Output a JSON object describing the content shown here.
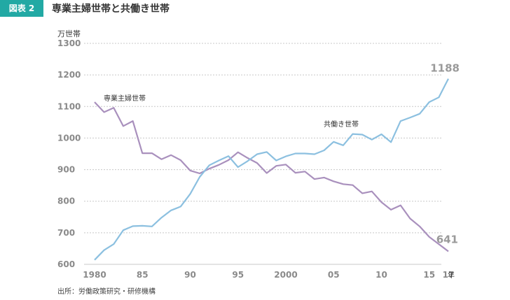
{
  "figure_label": "図表 2",
  "chart_data": {
    "type": "line",
    "title": "専業主婦世帯と共働き世帯",
    "ylabel": "万世帯",
    "xlabel": "年",
    "source": "出所：労働政策研究・研修機構",
    "ylim": [
      600,
      1300
    ],
    "yticks": [
      600,
      700,
      800,
      900,
      1000,
      1100,
      1200,
      1300
    ],
    "xlim": [
      1980,
      2017
    ],
    "xtick_values": [
      1980,
      1985,
      1990,
      1995,
      2000,
      2005,
      2010,
      2015,
      2017
    ],
    "xtick_labels": [
      "1980",
      "85",
      "90",
      "95",
      "2000",
      "05",
      "10",
      "15",
      "17"
    ],
    "grid": true,
    "x": [
      1980,
      1981,
      1982,
      1983,
      1984,
      1985,
      1986,
      1987,
      1988,
      1989,
      1990,
      1991,
      1992,
      1993,
      1994,
      1995,
      1996,
      1997,
      1998,
      1999,
      2000,
      2001,
      2002,
      2003,
      2004,
      2005,
      2006,
      2007,
      2008,
      2009,
      2010,
      2011,
      2012,
      2013,
      2014,
      2015,
      2016,
      2017
    ],
    "series": [
      {
        "name": "専業主婦世帯",
        "color": "#a990bd",
        "values": [
          1114,
          1082,
          1096,
          1038,
          1054,
          952,
          952,
          933,
          946,
          930,
          897,
          888,
          903,
          915,
          930,
          955,
          937,
          921,
          889,
          912,
          916,
          890,
          894,
          870,
          875,
          863,
          854,
          851,
          825,
          831,
          797,
          773,
          787,
          745,
          720,
          687,
          664,
          641
        ]
      },
      {
        "name": "共働き世帯",
        "color": "#8cc0e0",
        "values": [
          614,
          645,
          664,
          708,
          721,
          722,
          720,
          748,
          771,
          783,
          823,
          877,
          914,
          929,
          943,
          908,
          927,
          949,
          956,
          929,
          942,
          951,
          951,
          949,
          961,
          988,
          977,
          1013,
          1011,
          995,
          1012,
          987,
          1054,
          1065,
          1077,
          1114,
          1129,
          1188
        ]
      }
    ],
    "end_labels": {
      "series_0_last": "641",
      "series_1_last": "1188"
    }
  }
}
